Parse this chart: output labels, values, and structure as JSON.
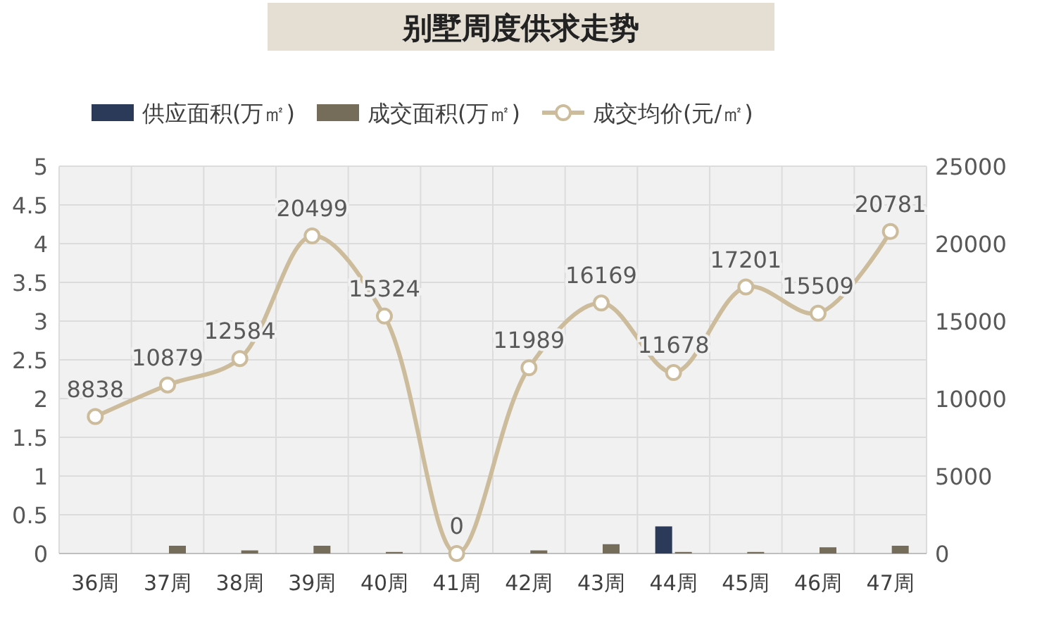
{
  "chart_data": {
    "type": "bar",
    "title": "别墅周度供求走势",
    "categories": [
      "36周",
      "37周",
      "38周",
      "39周",
      "40周",
      "41周",
      "42周",
      "43周",
      "44周",
      "45周",
      "46周",
      "47周"
    ],
    "series": [
      {
        "name": "供应面积(万㎡)",
        "color": "#2c3a5a",
        "values": [
          0,
          0,
          0,
          0,
          0,
          0,
          0,
          0,
          0.35,
          0,
          0,
          0
        ]
      },
      {
        "name": "成交面积(万㎡)",
        "color": "#756c5a",
        "values": [
          0,
          0.1,
          0.04,
          0.1,
          0.02,
          0,
          0.04,
          0.12,
          0.02,
          0.02,
          0.08,
          0.1
        ]
      },
      {
        "name": "成交均价(元/㎡)",
        "type": "line",
        "axis": "y2",
        "color": "#cdbc9c",
        "marker": "circle",
        "data_labels": true,
        "values": [
          8838,
          10879,
          12584,
          20499,
          15324,
          0,
          11989,
          16169,
          11678,
          17201,
          15509,
          20781
        ]
      }
    ],
    "ylim": [
      0,
      5
    ],
    "yticks": [
      0,
      0.5,
      1,
      1.5,
      2,
      2.5,
      3,
      3.5,
      4,
      4.5,
      5
    ],
    "y2lim": [
      0,
      25000
    ],
    "y2ticks": [
      0,
      5000,
      10000,
      15000,
      20000,
      25000
    ],
    "grid": true,
    "legend": "top"
  }
}
